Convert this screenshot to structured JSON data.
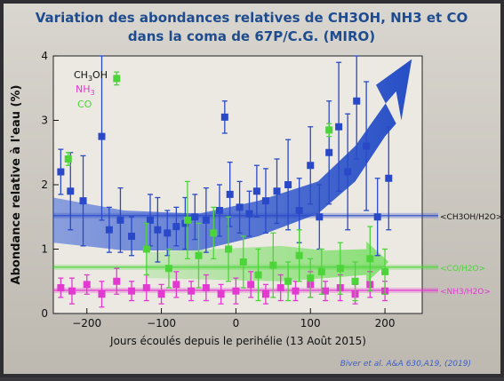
{
  "slide": {
    "title_line1": "Variation des abondances relatives de CH3OH, NH3 et CO",
    "title_line2": "dans la coma de 67P/C.G. (MIRO)",
    "citation": "Biver et al. A&A 630,A19, (2019)"
  },
  "colors": {
    "title": "#1f4c8f",
    "ch3oh": "#2a49c8",
    "nh3": "#e23ad0",
    "co": "#4cd43a",
    "trend_arrow": "#1f4fc0",
    "citation": "#3b5ec8"
  },
  "chart_data": {
    "type": "scatter",
    "xlabel": "Jours écoulés depuis le perihélie (13 Août 2015)",
    "ylabel": "Abondance relative à l'eau (%)",
    "xlim": [
      -245,
      250
    ],
    "ylim": [
      0,
      4
    ],
    "x_ticks": [
      -200,
      -100,
      0,
      100,
      200
    ],
    "y_ticks": [
      0,
      1,
      2,
      3,
      4
    ],
    "grid": false,
    "legend_position": "top-left",
    "series": [
      {
        "name": "CH3OH",
        "color": "#2a49c8",
        "mean_label": "CH3OH/H2O",
        "mean_value": 1.52,
        "points": [
          {
            "x": -235,
            "y": 2.2,
            "err": 0.35
          },
          {
            "x": -222,
            "y": 1.9,
            "err": 0.6
          },
          {
            "x": -205,
            "y": 1.75,
            "err": 0.7
          },
          {
            "x": -180,
            "y": 2.75,
            "err": 1.3
          },
          {
            "x": -170,
            "y": 1.3,
            "err": 0.35
          },
          {
            "x": -155,
            "y": 1.45,
            "err": 0.5
          },
          {
            "x": -140,
            "y": 1.2,
            "err": 0.3
          },
          {
            "x": -115,
            "y": 1.45,
            "err": 0.4
          },
          {
            "x": -105,
            "y": 1.3,
            "err": 0.5
          },
          {
            "x": -92,
            "y": 1.25,
            "err": 0.35
          },
          {
            "x": -80,
            "y": 1.35,
            "err": 0.3
          },
          {
            "x": -68,
            "y": 1.4,
            "err": 0.4
          },
          {
            "x": -55,
            "y": 1.5,
            "err": 0.35
          },
          {
            "x": -40,
            "y": 1.45,
            "err": 0.5
          },
          {
            "x": -22,
            "y": 1.6,
            "err": 0.4
          },
          {
            "x": -15,
            "y": 3.05,
            "err": 0.25
          },
          {
            "x": -8,
            "y": 1.85,
            "err": 0.5
          },
          {
            "x": 5,
            "y": 1.65,
            "err": 0.4
          },
          {
            "x": 18,
            "y": 1.55,
            "err": 0.35
          },
          {
            "x": 28,
            "y": 1.9,
            "err": 0.4
          },
          {
            "x": 40,
            "y": 1.75,
            "err": 0.5
          },
          {
            "x": 55,
            "y": 1.9,
            "err": 0.5
          },
          {
            "x": 70,
            "y": 2.0,
            "err": 0.7
          },
          {
            "x": 85,
            "y": 1.6,
            "err": 0.5
          },
          {
            "x": 100,
            "y": 2.3,
            "err": 0.6
          },
          {
            "x": 112,
            "y": 1.5,
            "err": 0.5
          },
          {
            "x": 125,
            "y": 2.5,
            "err": 0.8
          },
          {
            "x": 138,
            "y": 2.9,
            "err": 1.0
          },
          {
            "x": 150,
            "y": 2.2,
            "err": 0.9
          },
          {
            "x": 162,
            "y": 3.3,
            "err": 0.9
          },
          {
            "x": 175,
            "y": 2.6,
            "err": 1.0
          },
          {
            "x": 190,
            "y": 1.5,
            "err": 0.6
          },
          {
            "x": 205,
            "y": 2.1,
            "err": 0.8
          }
        ]
      },
      {
        "name": "NH3",
        "color": "#e23ad0",
        "mean_label": "NH3/H2O",
        "mean_value": 0.36,
        "points": [
          {
            "x": -235,
            "y": 0.4,
            "err": 0.15
          },
          {
            "x": -220,
            "y": 0.35,
            "err": 0.2
          },
          {
            "x": -200,
            "y": 0.45,
            "err": 0.15
          },
          {
            "x": -180,
            "y": 0.3,
            "err": 0.2
          },
          {
            "x": -160,
            "y": 0.5,
            "err": 0.2
          },
          {
            "x": -140,
            "y": 0.35,
            "err": 0.15
          },
          {
            "x": -120,
            "y": 0.4,
            "err": 0.2
          },
          {
            "x": -100,
            "y": 0.3,
            "err": 0.15
          },
          {
            "x": -80,
            "y": 0.45,
            "err": 0.2
          },
          {
            "x": -60,
            "y": 0.35,
            "err": 0.15
          },
          {
            "x": -40,
            "y": 0.4,
            "err": 0.2
          },
          {
            "x": -20,
            "y": 0.3,
            "err": 0.15
          },
          {
            "x": 0,
            "y": 0.35,
            "err": 0.2
          },
          {
            "x": 20,
            "y": 0.45,
            "err": 0.2
          },
          {
            "x": 40,
            "y": 0.3,
            "err": 0.15
          },
          {
            "x": 60,
            "y": 0.4,
            "err": 0.2
          },
          {
            "x": 80,
            "y": 0.35,
            "err": 0.15
          },
          {
            "x": 100,
            "y": 0.45,
            "err": 0.2
          },
          {
            "x": 120,
            "y": 0.35,
            "err": 0.15
          },
          {
            "x": 140,
            "y": 0.4,
            "err": 0.2
          },
          {
            "x": 160,
            "y": 0.3,
            "err": 0.15
          },
          {
            "x": 180,
            "y": 0.45,
            "err": 0.2
          },
          {
            "x": 200,
            "y": 0.35,
            "err": 0.15
          }
        ]
      },
      {
        "name": "CO",
        "color": "#4cd43a",
        "mean_label": "CO/H2O",
        "mean_value": 0.72,
        "points": [
          {
            "x": -225,
            "y": 2.4,
            "err": 0.1
          },
          {
            "x": -160,
            "y": 3.65,
            "err": 0.1
          },
          {
            "x": -120,
            "y": 1.0,
            "err": 0.4
          },
          {
            "x": -90,
            "y": 0.7,
            "err": 0.3
          },
          {
            "x": -65,
            "y": 1.45,
            "err": 0.6
          },
          {
            "x": -50,
            "y": 0.9,
            "err": 0.5
          },
          {
            "x": -30,
            "y": 1.25,
            "err": 0.4
          },
          {
            "x": -10,
            "y": 1.0,
            "err": 0.5
          },
          {
            "x": 10,
            "y": 0.8,
            "err": 0.4
          },
          {
            "x": 30,
            "y": 0.6,
            "err": 0.4
          },
          {
            "x": 50,
            "y": 0.75,
            "err": 0.5
          },
          {
            "x": 70,
            "y": 0.5,
            "err": 0.3
          },
          {
            "x": 85,
            "y": 0.9,
            "err": 0.4
          },
          {
            "x": 100,
            "y": 0.55,
            "err": 0.3
          },
          {
            "x": 115,
            "y": 0.65,
            "err": 0.35
          },
          {
            "x": 125,
            "y": 2.85,
            "err": 0.1
          },
          {
            "x": 140,
            "y": 0.7,
            "err": 0.4
          },
          {
            "x": 160,
            "y": 0.5,
            "err": 0.3
          },
          {
            "x": 180,
            "y": 0.85,
            "err": 0.5
          },
          {
            "x": 200,
            "y": 0.65,
            "err": 0.35
          }
        ]
      }
    ]
  }
}
